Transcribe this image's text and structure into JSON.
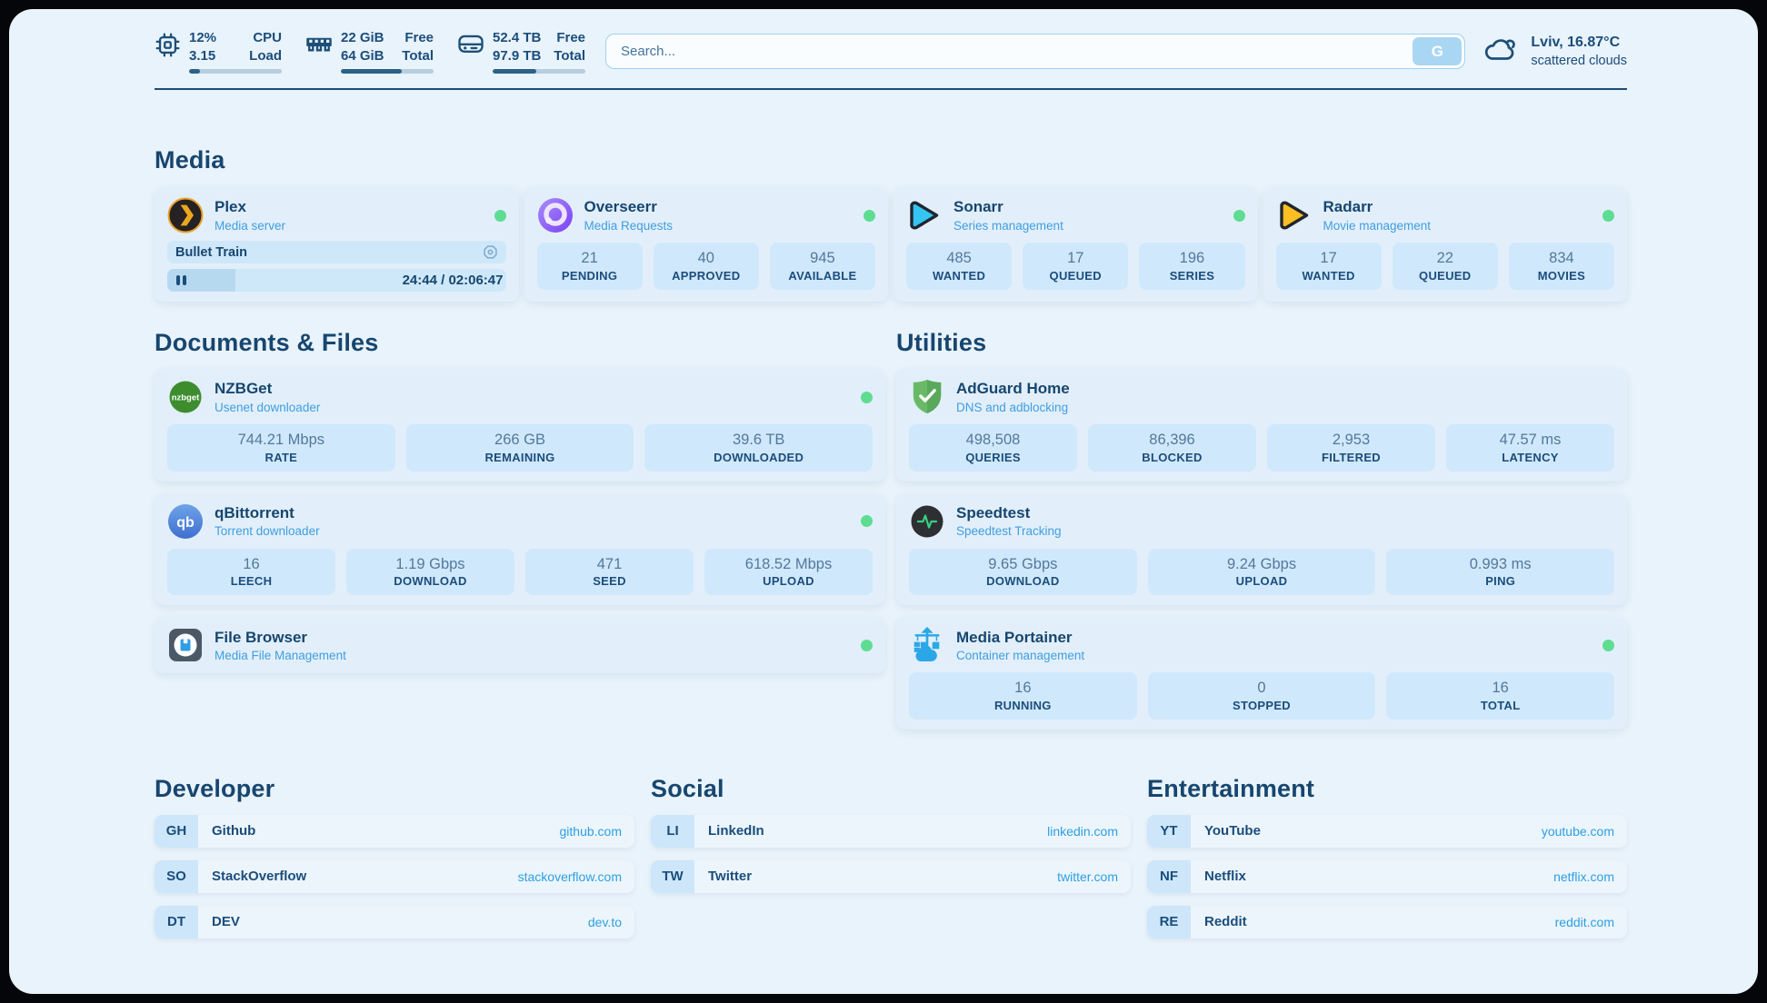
{
  "system": {
    "cpu": {
      "value_top": "12%",
      "value_bottom": "3.15",
      "label_top": "CPU",
      "label_bottom": "Load",
      "progress_pct": 12
    },
    "ram": {
      "value_top": "22 GiB",
      "value_bottom": "64 GiB",
      "label_top": "Free",
      "label_bottom": "Total",
      "progress_pct": 66
    },
    "disk": {
      "value_top": "52.4 TB",
      "value_bottom": "97.9 TB",
      "label_top": "Free",
      "label_bottom": "Total",
      "progress_pct": 47
    }
  },
  "search": {
    "placeholder": "Search...",
    "button_label": "G"
  },
  "weather": {
    "location_temp": "Lviv, 16.87°C",
    "condition": "scattered clouds"
  },
  "sections": {
    "media": "Media",
    "documents": "Documents & Files",
    "utilities": "Utilities",
    "developer": "Developer",
    "social": "Social",
    "entertainment": "Entertainment"
  },
  "apps": {
    "plex": {
      "name": "Plex",
      "description": "Media server",
      "online": true,
      "player": {
        "title": "Bullet Train",
        "time": "24:44 / 02:06:47",
        "progress_pct": 20
      }
    },
    "overseerr": {
      "name": "Overseerr",
      "description": "Media Requests",
      "online": true,
      "stats": [
        {
          "value": "21",
          "label": "PENDING"
        },
        {
          "value": "40",
          "label": "APPROVED"
        },
        {
          "value": "945",
          "label": "AVAILABLE"
        }
      ]
    },
    "sonarr": {
      "name": "Sonarr",
      "description": "Series management",
      "online": true,
      "stats": [
        {
          "value": "485",
          "label": "WANTED"
        },
        {
          "value": "17",
          "label": "QUEUED"
        },
        {
          "value": "196",
          "label": "SERIES"
        }
      ]
    },
    "radarr": {
      "name": "Radarr",
      "description": "Movie management",
      "online": true,
      "stats": [
        {
          "value": "17",
          "label": "WANTED"
        },
        {
          "value": "22",
          "label": "QUEUED"
        },
        {
          "value": "834",
          "label": "MOVIES"
        }
      ]
    },
    "nzbget": {
      "name": "NZBGet",
      "description": "Usenet downloader",
      "online": true,
      "stats": [
        {
          "value": "744.21 Mbps",
          "label": "RATE"
        },
        {
          "value": "266 GB",
          "label": "REMAINING"
        },
        {
          "value": "39.6 TB",
          "label": "DOWNLOADED"
        }
      ]
    },
    "qbittorrent": {
      "name": "qBittorrent",
      "description": "Torrent downloader",
      "online": true,
      "stats": [
        {
          "value": "16",
          "label": "LEECH"
        },
        {
          "value": "1.19 Gbps",
          "label": "DOWNLOAD"
        },
        {
          "value": "471",
          "label": "SEED"
        },
        {
          "value": "618.52 Mbps",
          "label": "UPLOAD"
        }
      ]
    },
    "filebrowser": {
      "name": "File Browser",
      "description": "Media File Management",
      "online": true
    },
    "adguard": {
      "name": "AdGuard Home",
      "description": "DNS and adblocking",
      "stats": [
        {
          "value": "498,508",
          "label": "QUERIES"
        },
        {
          "value": "86,396",
          "label": "BLOCKED"
        },
        {
          "value": "2,953",
          "label": "FILTERED"
        },
        {
          "value": "47.57 ms",
          "label": "LATENCY"
        }
      ]
    },
    "speedtest": {
      "name": "Speedtest",
      "description": "Speedtest Tracking",
      "stats": [
        {
          "value": "9.65 Gbps",
          "label": "DOWNLOAD"
        },
        {
          "value": "9.24 Gbps",
          "label": "UPLOAD"
        },
        {
          "value": "0.993 ms",
          "label": "PING"
        }
      ]
    },
    "portainer": {
      "name": "Media Portainer",
      "description": "Container management",
      "online": true,
      "stats": [
        {
          "value": "16",
          "label": "RUNNING"
        },
        {
          "value": "0",
          "label": "STOPPED"
        },
        {
          "value": "16",
          "label": "TOTAL"
        }
      ]
    }
  },
  "bookmarks": {
    "developer": [
      {
        "abbr": "GH",
        "name": "Github",
        "url": "github.com"
      },
      {
        "abbr": "SO",
        "name": "StackOverflow",
        "url": "stackoverflow.com"
      },
      {
        "abbr": "DT",
        "name": "DEV",
        "url": "dev.to"
      }
    ],
    "social": [
      {
        "abbr": "LI",
        "name": "LinkedIn",
        "url": "linkedin.com"
      },
      {
        "abbr": "TW",
        "name": "Twitter",
        "url": "twitter.com"
      }
    ],
    "entertainment": [
      {
        "abbr": "YT",
        "name": "YouTube",
        "url": "youtube.com"
      },
      {
        "abbr": "NF",
        "name": "Netflix",
        "url": "netflix.com"
      },
      {
        "abbr": "RE",
        "name": "Reddit",
        "url": "reddit.com"
      }
    ]
  },
  "icons": {
    "cpu-icon": "chip",
    "ram-icon": "memory-stick",
    "disk-icon": "hard-drive",
    "cloud-icon": "weather-clouds",
    "pause-icon": "pause",
    "cast-icon": "octagon-record"
  },
  "colors": {
    "page_bg": "#e9f3fb",
    "navy_text": "#17466f",
    "accent_blue": "#3f9ee1",
    "link_blue": "#2d9fe2",
    "online_green": "#5edd92",
    "stat_box": "#d0e8fb"
  }
}
